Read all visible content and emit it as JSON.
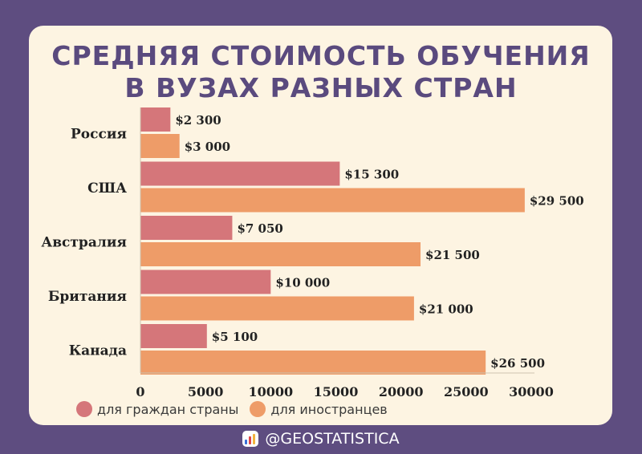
{
  "title_line1": "СРЕДНЯЯ СТОИМОСТЬ ОБУЧЕНИЯ",
  "title_line2": "В ВУЗАХ РАЗНЫХ СТРАН",
  "legend": {
    "citizens": "для граждан страны",
    "foreigners": "для иностранцев"
  },
  "footer": {
    "handle": "@GEOSTATISTICA",
    "icon": "bar-chart-logo-icon"
  },
  "colors": {
    "citizens": "#d5767a",
    "foreigners": "#ee9c68",
    "background": "#5e4d80",
    "card": "#fdf4e2",
    "title": "#5a4a7e"
  },
  "chart_data": {
    "type": "bar",
    "orientation": "horizontal",
    "categories": [
      "Россия",
      "США",
      "Австралия",
      "Британия",
      "Канада"
    ],
    "series": [
      {
        "name": "для граждан страны",
        "values": [
          2300,
          15300,
          7050,
          10000,
          5100
        ],
        "labels": [
          "$2 300",
          "$15 300",
          "$7 050",
          "$10 000",
          "$5 100"
        ]
      },
      {
        "name": "для иностранцев",
        "values": [
          3000,
          29500,
          21500,
          21000,
          26500
        ],
        "labels": [
          "$3 000",
          "$29 500",
          "$21 500",
          "$21 000",
          "$26 500"
        ]
      }
    ],
    "xlim": [
      0,
      30000
    ],
    "xticks": [
      0,
      5000,
      10000,
      15000,
      20000,
      25000,
      30000
    ],
    "xtick_labels": [
      "0",
      "5000",
      "10000",
      "15000",
      "20000",
      "25000",
      "30000"
    ],
    "grid": false,
    "legend_position": "bottom"
  }
}
